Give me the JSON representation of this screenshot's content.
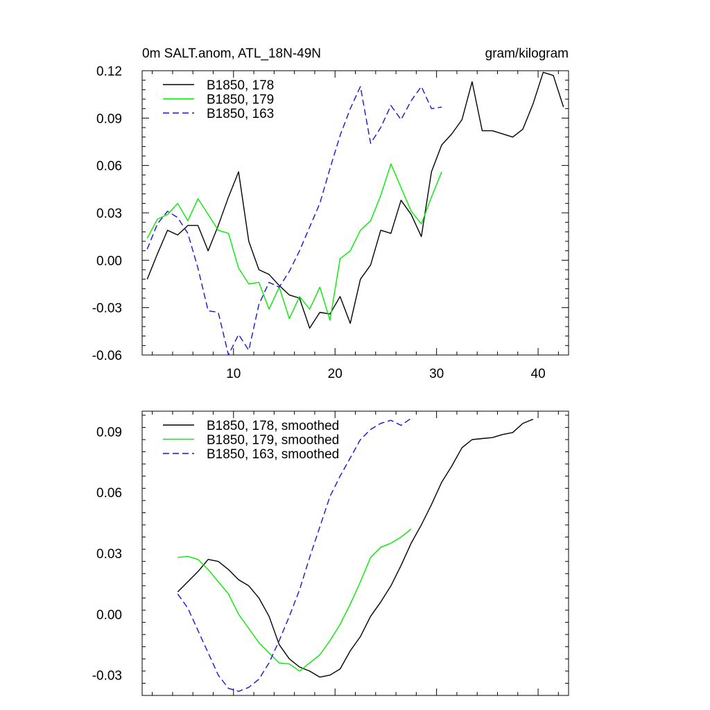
{
  "colors": {
    "black": "#000000",
    "green": "#00ee00",
    "blue": "#1414d6"
  },
  "chart_data": [
    {
      "type": "line",
      "title": "0m SALT.anom, ATL_18N-49N",
      "units_label": "gram/kilogram",
      "xlim": [
        1,
        43
      ],
      "ylim": [
        -0.06,
        0.12
      ],
      "x_ticks": [
        10,
        20,
        30,
        40
      ],
      "x_ticks_labeled": true,
      "y_ticks": [
        -0.06,
        -0.03,
        0.0,
        0.03,
        0.06,
        0.09,
        0.12
      ],
      "y_tick_labels": [
        "-0.06",
        "-0.03",
        "0.00",
        "0.03",
        "0.06",
        "0.09",
        "0.12"
      ],
      "grid": false,
      "legend_position": "top-left",
      "series": [
        {
          "name": "B1850, 178",
          "color": "#000000",
          "dash": "solid",
          "x": [
            1.5,
            2.5,
            3.5,
            4.5,
            5.5,
            6.5,
            7.5,
            8.5,
            9.5,
            10.5,
            11.5,
            12.5,
            13.5,
            14.5,
            15.5,
            16.5,
            17.5,
            18.5,
            19.5,
            20.5,
            21.5,
            22.5,
            23.5,
            24.5,
            25.5,
            26.5,
            27.5,
            28.5,
            29.5,
            30.5,
            31.5,
            32.5,
            33.5,
            34.5,
            35.5,
            36.5,
            37.5,
            38.5,
            39.5,
            40.5,
            41.5,
            42.5
          ],
          "y": [
            -0.012,
            0.004,
            0.019,
            0.016,
            0.022,
            0.022,
            0.006,
            0.022,
            0.04,
            0.056,
            0.012,
            -0.006,
            -0.009,
            -0.016,
            -0.022,
            -0.024,
            -0.043,
            -0.033,
            -0.034,
            -0.023,
            -0.04,
            -0.012,
            -0.003,
            0.019,
            0.017,
            0.038,
            0.029,
            0.015,
            0.056,
            0.073,
            0.08,
            0.089,
            0.113,
            0.082,
            0.082,
            0.08,
            0.078,
            0.083,
            0.099,
            0.119,
            0.117,
            0.097
          ]
        },
        {
          "name": "B1850, 179",
          "color": "#00ee00",
          "dash": "solid",
          "x": [
            1.5,
            2.5,
            3.5,
            4.5,
            5.5,
            6.5,
            7.5,
            8.5,
            9.5,
            10.5,
            11.5,
            12.5,
            13.5,
            14.5,
            15.5,
            16.5,
            17.5,
            18.5,
            19.5,
            20.5,
            21.5,
            22.5,
            23.5,
            24.5,
            25.5,
            26.5,
            27.5,
            28.5,
            29.5,
            30.5
          ],
          "y": [
            0.014,
            0.026,
            0.029,
            0.036,
            0.025,
            0.039,
            0.029,
            0.019,
            0.017,
            -0.005,
            -0.015,
            -0.014,
            -0.031,
            -0.017,
            -0.037,
            -0.023,
            -0.031,
            -0.017,
            -0.038,
            0.001,
            0.006,
            0.019,
            0.025,
            0.041,
            0.061,
            0.046,
            0.031,
            0.023,
            0.04,
            0.056
          ]
        },
        {
          "name": "B1850, 163",
          "color": "#1414d6",
          "dash": "dashed",
          "x": [
            1.5,
            2.5,
            3.5,
            4.5,
            5.5,
            6.5,
            7.5,
            8.5,
            9.5,
            10.5,
            11.5,
            12.5,
            13.5,
            14.5,
            15.5,
            16.5,
            17.5,
            18.5,
            19.5,
            20.5,
            21.5,
            22.5,
            23.5,
            24.5,
            25.5,
            26.5,
            27.5,
            28.5,
            29.5,
            30.5
          ],
          "y": [
            0.007,
            0.023,
            0.031,
            0.027,
            0.017,
            -0.005,
            -0.032,
            -0.033,
            -0.06,
            -0.047,
            -0.057,
            -0.028,
            -0.014,
            -0.017,
            -0.007,
            0.006,
            0.021,
            0.036,
            0.058,
            0.079,
            0.096,
            0.11,
            0.074,
            0.084,
            0.098,
            0.089,
            0.101,
            0.11,
            0.096,
            0.097
          ]
        }
      ]
    },
    {
      "type": "line",
      "xlim": [
        1,
        43
      ],
      "ylim": [
        -0.04,
        0.1
      ],
      "x_ticks": [
        10,
        20,
        30,
        40
      ],
      "x_ticks_labeled": false,
      "y_ticks": [
        -0.03,
        0.0,
        0.03,
        0.06,
        0.09
      ],
      "y_tick_labels": [
        "-0.03",
        "0.00",
        "0.03",
        "0.06",
        "0.09"
      ],
      "grid": false,
      "legend_position": "top-left",
      "series": [
        {
          "name": "B1850, 178, smoothed",
          "color": "#000000",
          "dash": "solid",
          "x": [
            4.5,
            5.5,
            6.5,
            7.5,
            8.5,
            9.5,
            10.5,
            11.5,
            12.5,
            13.5,
            14.5,
            15.5,
            16.5,
            17.5,
            18.5,
            19.5,
            20.5,
            21.5,
            22.5,
            23.5,
            24.5,
            25.5,
            26.5,
            27.5,
            28.5,
            29.5,
            30.5,
            31.5,
            32.5,
            33.5,
            34.5,
            35.5,
            36.5,
            37.5,
            38.5,
            39.5
          ],
          "y": [
            0.011,
            0.016,
            0.021,
            0.027,
            0.026,
            0.022,
            0.017,
            0.014,
            0.008,
            -0.001,
            -0.015,
            -0.022,
            -0.026,
            -0.028,
            -0.031,
            -0.03,
            -0.027,
            -0.018,
            -0.011,
            -0.001,
            0.006,
            0.014,
            0.024,
            0.035,
            0.044,
            0.054,
            0.065,
            0.073,
            0.082,
            0.086,
            0.0865,
            0.087,
            0.0885,
            0.0895,
            0.094,
            0.096
          ]
        },
        {
          "name": "B1850, 179, smoothed",
          "color": "#00ee00",
          "dash": "solid",
          "x": [
            4.5,
            5.5,
            6.5,
            7.5,
            8.5,
            9.5,
            10.5,
            11.5,
            12.5,
            13.5,
            14.5,
            15.5,
            16.5,
            17.5,
            18.5,
            19.5,
            20.5,
            21.5,
            22.5,
            23.5,
            24.5,
            25.5,
            26.5,
            27.5
          ],
          "y": [
            0.028,
            0.0285,
            0.027,
            0.022,
            0.016,
            0.01,
            0.0,
            -0.007,
            -0.014,
            -0.019,
            -0.024,
            -0.0245,
            -0.028,
            -0.024,
            -0.02,
            -0.013,
            -0.005,
            0.005,
            0.016,
            0.028,
            0.033,
            0.035,
            0.038,
            0.042
          ]
        },
        {
          "name": "B1850, 163, smoothed",
          "color": "#1414d6",
          "dash": "dashed",
          "x": [
            4.5,
            5.5,
            6.5,
            7.5,
            8.5,
            9.5,
            10.5,
            11.5,
            12.5,
            13.5,
            14.5,
            15.5,
            16.5,
            17.5,
            18.5,
            19.5,
            20.5,
            21.5,
            22.5,
            23.5,
            24.5,
            25.5,
            26.5,
            27.5
          ],
          "y": [
            0.01,
            0.003,
            -0.008,
            -0.019,
            -0.03,
            -0.0365,
            -0.038,
            -0.036,
            -0.032,
            -0.024,
            -0.013,
            -0.001,
            0.012,
            0.028,
            0.043,
            0.058,
            0.068,
            0.077,
            0.086,
            0.091,
            0.094,
            0.0955,
            0.093,
            0.0965
          ]
        }
      ]
    }
  ]
}
